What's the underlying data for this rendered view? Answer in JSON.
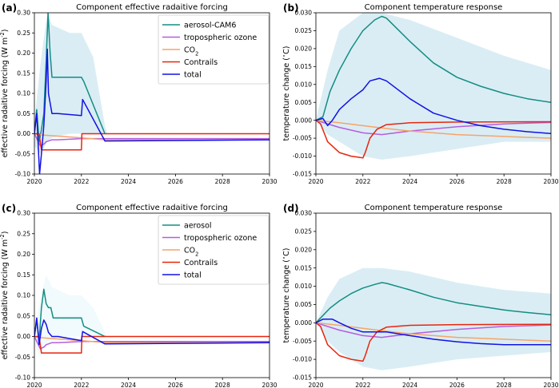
{
  "chart_data": [
    {
      "panel": "(a)",
      "type": "line",
      "title": "Component effective radaitive forcing",
      "ylabel": "effective radaitive forcing (W m$^{-2}$)",
      "xlim": [
        2020,
        2030
      ],
      "ylim": [
        -0.1,
        0.3
      ],
      "x_ticks": [
        "2020",
        "2022",
        "2024",
        "2026",
        "2028",
        "2030"
      ],
      "y_ticks": [
        "-0.10",
        "-0.05",
        "0.00",
        "0.05",
        "0.10",
        "0.15",
        "0.20",
        "0.25",
        "0.30"
      ],
      "legend_position": "top-right",
      "band": {
        "x": [
          2020,
          2020.25,
          2020.55,
          2020.75,
          2021.5,
          2022.0,
          2022.5,
          2023.0,
          2023.1
        ],
        "upper": [
          0.03,
          0.17,
          0.3,
          0.27,
          0.25,
          0.25,
          0.19,
          0.02,
          0.0
        ],
        "lower": [
          -0.03,
          -0.05,
          -0.02,
          -0.01,
          0.0,
          0.0,
          0.0,
          0.0,
          0.0
        ],
        "color": "#add8e6"
      },
      "series": [
        {
          "name": "aerosol-CAM6",
          "color": "#138d83",
          "x": [
            2020,
            2020.1,
            2020.2,
            2020.3,
            2020.4,
            2020.5,
            2020.58,
            2020.67,
            2020.75,
            2021.0,
            2022.0,
            2022.1,
            2023.0
          ],
          "y": [
            0.0,
            0.06,
            -0.02,
            0.01,
            0.05,
            0.18,
            0.3,
            0.2,
            0.14,
            0.14,
            0.14,
            0.13,
            0.0
          ]
        },
        {
          "name": "tropospheric ozone",
          "color": "#b45ee0",
          "x": [
            2020,
            2020.25,
            2020.42,
            2020.5,
            2020.75,
            2021.0,
            2022.0,
            2023.0,
            2030
          ],
          "y": [
            0.0,
            -0.03,
            -0.025,
            -0.02,
            -0.015,
            -0.015,
            -0.012,
            -0.012,
            -0.012
          ]
        },
        {
          "name": "CO$_2$",
          "color": "#f5a46b",
          "x": [
            2020,
            2020.3,
            2021,
            2022,
            2023,
            2030
          ],
          "y": [
            0.0,
            -0.003,
            -0.006,
            -0.01,
            -0.015,
            -0.015
          ]
        },
        {
          "name": "Contrails",
          "color": "#e6260e",
          "x": [
            2020,
            2020.2,
            2020.3,
            2022.0,
            2022.02,
            2030
          ],
          "y": [
            0.0,
            0.0,
            -0.04,
            -0.04,
            0.0,
            0.0
          ]
        },
        {
          "name": "total",
          "color": "#1212e6",
          "x": [
            2020,
            2020.1,
            2020.22,
            2020.3,
            2020.4,
            2020.5,
            2020.55,
            2020.6,
            2020.75,
            2021.0,
            2022.0,
            2022.05,
            2023.0,
            2030
          ],
          "y": [
            0.0,
            0.05,
            -0.1,
            -0.05,
            0.02,
            0.13,
            0.21,
            0.1,
            0.05,
            0.05,
            0.045,
            0.085,
            -0.018,
            -0.015
          ]
        }
      ]
    },
    {
      "panel": "(b)",
      "type": "line",
      "title": "Component temperature response",
      "ylabel": "temperature change ($^\\circ$C)",
      "xlim": [
        2020,
        2030
      ],
      "ylim": [
        -0.015,
        0.03
      ],
      "x_ticks": [
        "2020",
        "2022",
        "2024",
        "2026",
        "2028",
        "2030"
      ],
      "y_ticks": [
        "-0.015",
        "-0.010",
        "-0.005",
        "0.000",
        "0.005",
        "0.010",
        "0.015",
        "0.020",
        "0.025",
        "0.030"
      ],
      "band": {
        "x": [
          2020,
          2020.5,
          2021,
          2022,
          2022.8,
          2024,
          2026,
          2028,
          2030
        ],
        "upper": [
          0.0,
          0.014,
          0.025,
          0.03,
          0.03,
          0.028,
          0.023,
          0.018,
          0.014
        ],
        "lower": [
          0.0,
          -0.004,
          -0.006,
          -0.01,
          -0.011,
          -0.01,
          -0.008,
          -0.006,
          -0.006
        ],
        "color": "#add8e6"
      },
      "series": [
        {
          "name": "aerosol-CAM6",
          "color": "#138d83",
          "x": [
            2020,
            2020.3,
            2020.6,
            2021,
            2021.5,
            2022,
            2022.5,
            2022.8,
            2023,
            2024,
            2025,
            2026,
            2027,
            2028,
            2029,
            2030
          ],
          "y": [
            0.0,
            0.001,
            0.008,
            0.014,
            0.02,
            0.025,
            0.028,
            0.029,
            0.0285,
            0.022,
            0.016,
            0.012,
            0.0095,
            0.0075,
            0.006,
            0.005
          ]
        },
        {
          "name": "tropospheric ozone",
          "color": "#b45ee0",
          "x": [
            2020,
            2021,
            2022,
            2022.8,
            2024,
            2026,
            2028,
            2030
          ],
          "y": [
            0.0,
            -0.002,
            -0.0035,
            -0.004,
            -0.003,
            -0.0018,
            -0.001,
            -0.0006
          ]
        },
        {
          "name": "CO$_2$",
          "color": "#f5a46b",
          "x": [
            2020,
            2021,
            2022,
            2023,
            2024,
            2026,
            2028,
            2030
          ],
          "y": [
            0.0,
            -0.0007,
            -0.0015,
            -0.0023,
            -0.003,
            -0.004,
            -0.0045,
            -0.005
          ]
        },
        {
          "name": "Contrails",
          "color": "#e6260e",
          "x": [
            2020,
            2020.2,
            2020.5,
            2021,
            2021.5,
            2022,
            2022.1,
            2022.3,
            2022.6,
            2023,
            2024,
            2026,
            2030
          ],
          "y": [
            0.0,
            -0.001,
            -0.006,
            -0.009,
            -0.01,
            -0.0105,
            -0.009,
            -0.005,
            -0.0025,
            -0.0012,
            -0.0007,
            -0.0005,
            -0.0004
          ]
        },
        {
          "name": "total",
          "color": "#1212e6",
          "x": [
            2020,
            2020.3,
            2020.5,
            2020.7,
            2021,
            2021.5,
            2022,
            2022.3,
            2022.7,
            2023,
            2024,
            2025,
            2026,
            2027,
            2028,
            2029,
            2030
          ],
          "y": [
            0.0,
            0.0005,
            -0.0015,
            0.0,
            0.003,
            0.006,
            0.0085,
            0.011,
            0.0117,
            0.011,
            0.006,
            0.002,
            0.0,
            -0.0015,
            -0.0025,
            -0.0032,
            -0.0037
          ]
        }
      ]
    },
    {
      "panel": "(c)",
      "type": "line",
      "title": "Component effective radaitive forcing",
      "ylabel": "effective radaitive forcing (W m$^{-2}$)",
      "xlim": [
        2020,
        2030
      ],
      "ylim": [
        -0.1,
        0.3
      ],
      "x_ticks": [
        "2020",
        "2022",
        "2024",
        "2026",
        "2028",
        "2030"
      ],
      "y_ticks": [
        "-0.10",
        "-0.05",
        "0.00",
        "0.05",
        "0.10",
        "0.15",
        "0.20",
        "0.25",
        "0.30"
      ],
      "legend_position": "top-right",
      "band": {
        "x": [
          2020,
          2020.25,
          2020.5,
          2020.75,
          2021.5,
          2022.0,
          2022.5,
          2023.0,
          2023.1
        ],
        "upper": [
          0.02,
          0.09,
          0.15,
          0.12,
          0.1,
          0.1,
          0.07,
          0.01,
          0.0
        ],
        "lower": [
          -0.02,
          -0.05,
          -0.02,
          -0.01,
          0.0,
          0.0,
          0.0,
          0.0,
          0.0
        ],
        "color": "#e0f5f8"
      },
      "series": [
        {
          "name": "aerosol",
          "color": "#138d83",
          "x": [
            2020,
            2020.1,
            2020.2,
            2020.3,
            2020.4,
            2020.5,
            2020.6,
            2020.7,
            2020.8,
            2021.0,
            2022.0,
            2022.1,
            2023.0
          ],
          "y": [
            0.0,
            0.04,
            -0.01,
            0.07,
            0.115,
            0.08,
            0.07,
            0.07,
            0.045,
            0.045,
            0.045,
            0.025,
            0.0
          ]
        },
        {
          "name": "tropospheric ozone",
          "color": "#b45ee0",
          "x": [
            2020,
            2020.25,
            2020.42,
            2020.5,
            2020.75,
            2021.0,
            2022.0,
            2023.0,
            2030
          ],
          "y": [
            0.0,
            -0.03,
            -0.025,
            -0.02,
            -0.015,
            -0.015,
            -0.012,
            -0.012,
            -0.012
          ]
        },
        {
          "name": "CO$_2$",
          "color": "#f5a46b",
          "x": [
            2020,
            2020.3,
            2021,
            2022,
            2023,
            2030
          ],
          "y": [
            0.0,
            -0.003,
            -0.006,
            -0.01,
            -0.015,
            -0.015
          ]
        },
        {
          "name": "Contrails",
          "color": "#e6260e",
          "x": [
            2020,
            2020.2,
            2020.3,
            2022.0,
            2022.02,
            2030
          ],
          "y": [
            0.0,
            0.0,
            -0.04,
            -0.04,
            0.0,
            0.0
          ]
        },
        {
          "name": "total",
          "color": "#1212e6",
          "x": [
            2020,
            2020.1,
            2020.2,
            2020.3,
            2020.4,
            2020.5,
            2020.6,
            2020.75,
            2021.0,
            2022.0,
            2022.05,
            2023.0,
            2030
          ],
          "y": [
            0.0,
            0.045,
            -0.02,
            0.02,
            0.04,
            0.03,
            0.01,
            0.0,
            0.0,
            -0.01,
            0.012,
            -0.018,
            -0.015
          ]
        }
      ]
    },
    {
      "panel": "(d)",
      "type": "line",
      "title": "Component temperature response",
      "ylabel": "temperature change ($^\\circ$C)",
      "xlim": [
        2020,
        2030
      ],
      "ylim": [
        -0.015,
        0.03
      ],
      "x_ticks": [
        "2020",
        "2022",
        "2024",
        "2026",
        "2028",
        "2030"
      ],
      "y_ticks": [
        "-0.015",
        "-0.010",
        "-0.005",
        "0.000",
        "0.005",
        "0.010",
        "0.015",
        "0.020",
        "0.025",
        "0.030"
      ],
      "band": {
        "x": [
          2020,
          2020.5,
          2021,
          2022,
          2022.8,
          2024,
          2026,
          2028,
          2030
        ],
        "upper": [
          0.0,
          0.007,
          0.012,
          0.015,
          0.015,
          0.014,
          0.011,
          0.009,
          0.008
        ],
        "lower": [
          0.0,
          -0.005,
          -0.008,
          -0.012,
          -0.013,
          -0.012,
          -0.01,
          -0.009,
          -0.008
        ],
        "color": "#add8e6"
      },
      "series": [
        {
          "name": "aerosol",
          "color": "#138d83",
          "x": [
            2020,
            2020.3,
            2020.6,
            2021,
            2021.5,
            2022,
            2022.5,
            2022.8,
            2023,
            2024,
            2025,
            2026,
            2027,
            2028,
            2029,
            2030
          ],
          "y": [
            0.0,
            0.002,
            0.004,
            0.006,
            0.008,
            0.0095,
            0.0105,
            0.011,
            0.0108,
            0.009,
            0.007,
            0.0055,
            0.0045,
            0.0035,
            0.0028,
            0.0022
          ]
        },
        {
          "name": "tropospheric ozone",
          "color": "#b45ee0",
          "x": [
            2020,
            2021,
            2022,
            2022.8,
            2024,
            2026,
            2028,
            2030
          ],
          "y": [
            0.0,
            -0.002,
            -0.0035,
            -0.004,
            -0.003,
            -0.0018,
            -0.001,
            -0.0006
          ]
        },
        {
          "name": "CO$_2$",
          "color": "#f5a46b",
          "x": [
            2020,
            2021,
            2022,
            2023,
            2024,
            2026,
            2028,
            2030
          ],
          "y": [
            0.0,
            -0.0007,
            -0.0015,
            -0.0023,
            -0.003,
            -0.004,
            -0.0045,
            -0.005
          ]
        },
        {
          "name": "Contrails",
          "color": "#e6260e",
          "x": [
            2020,
            2020.2,
            2020.5,
            2021,
            2021.5,
            2022,
            2022.1,
            2022.3,
            2022.6,
            2023,
            2024,
            2026,
            2030
          ],
          "y": [
            0.0,
            -0.001,
            -0.006,
            -0.009,
            -0.01,
            -0.0105,
            -0.009,
            -0.005,
            -0.0025,
            -0.0012,
            -0.0007,
            -0.0005,
            -0.0004
          ]
        },
        {
          "name": "total",
          "color": "#1212e6",
          "x": [
            2020,
            2020.3,
            2020.7,
            2021,
            2021.5,
            2022,
            2022.5,
            2023,
            2024,
            2025,
            2026,
            2027,
            2028,
            2029,
            2030
          ],
          "y": [
            0.0,
            0.001,
            0.001,
            0.0,
            -0.0015,
            -0.0025,
            -0.0025,
            -0.0025,
            -0.0035,
            -0.0045,
            -0.0052,
            -0.0057,
            -0.006,
            -0.006,
            -0.006
          ]
        }
      ]
    }
  ]
}
